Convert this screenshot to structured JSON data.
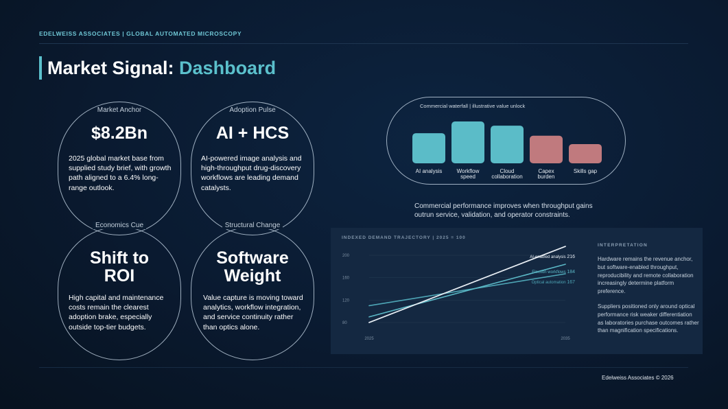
{
  "header": {
    "topline": "EDELWEISS ASSOCIATES | GLOBAL AUTOMATED MICROSCOPY",
    "title_main": "Market Signal: ",
    "title_accent": "Dashboard"
  },
  "cards": [
    {
      "label": "Market Anchor",
      "value": "$8.2Bn",
      "body": "2025 global market base from supplied study brief, with growth path aligned to a 6.4% long-range outlook."
    },
    {
      "label": "Adoption Pulse",
      "value": "AI + HCS",
      "body": "AI-powered image analysis and high-throughput drug-discovery workflows are leading demand catalysts."
    },
    {
      "label": "Economics Cue",
      "value_line1": "Shift to",
      "value_line2": "ROI",
      "body": "High capital and maintenance costs remain the clearest adoption brake, especially outside top-tier budgets."
    },
    {
      "label": "Structural Change",
      "value_line1": "Software",
      "value_line2": "Weight",
      "body": "Value capture is moving toward analytics, workflow integration, and service continuity rather than optics alone."
    }
  ],
  "waterfall": {
    "title": "Commercial waterfall | illustrative value unlock",
    "caption": "Commercial performance improves when throughput gains outrun service, validation, and operator constraints.",
    "colors": {
      "positive": "#5bbcc8",
      "negative": "#c07a7e"
    }
  },
  "line_panel": {
    "title": "INDEXED DEMAND TRAJECTORY | 2025 = 100",
    "interpretation_title": "INTERPRETATION",
    "para1": "Hardware remains the revenue anchor, but software-enabled throughput, reproducibility and remote collaboration increasingly determine platform preference.",
    "para2": "Suppliers positioned only around optical performance risk weaker differentiation as laboratories purchase outcomes rather than magnification specifications."
  },
  "footer": {
    "text": "Edelweiss Associates © 2026"
  },
  "chart_data": [
    {
      "type": "bar",
      "title": "Commercial waterfall | illustrative value unlock",
      "categories": [
        "AI analysis",
        "Workflow speed",
        "Cloud collaboration",
        "Capex burden",
        "Skills gap"
      ],
      "values": [
        0.72,
        1.0,
        0.9,
        0.66,
        0.46
      ],
      "signs": [
        "positive",
        "positive",
        "positive",
        "negative",
        "negative"
      ]
    },
    {
      "type": "line",
      "title": "INDEXED DEMAND TRAJECTORY | 2025 = 100",
      "x": [
        2025,
        2035
      ],
      "x_ticks": [
        "2025",
        "2035"
      ],
      "y_ticks": [
        "80",
        "120",
        "160",
        "200"
      ],
      "ylim": [
        75,
        205
      ],
      "series": [
        {
          "name": "AI-enabled analysis",
          "values": [
            80,
            216
          ],
          "end_label": "216",
          "color": "#e8eef4"
        },
        {
          "name": "Election workflows",
          "values": [
            90,
            184
          ],
          "end_label": "184",
          "color": "#5bb8c6"
        },
        {
          "name": "Optical automation",
          "values": [
            110,
            167
          ],
          "end_label": "167",
          "color": "#4ea6b6"
        }
      ]
    }
  ]
}
